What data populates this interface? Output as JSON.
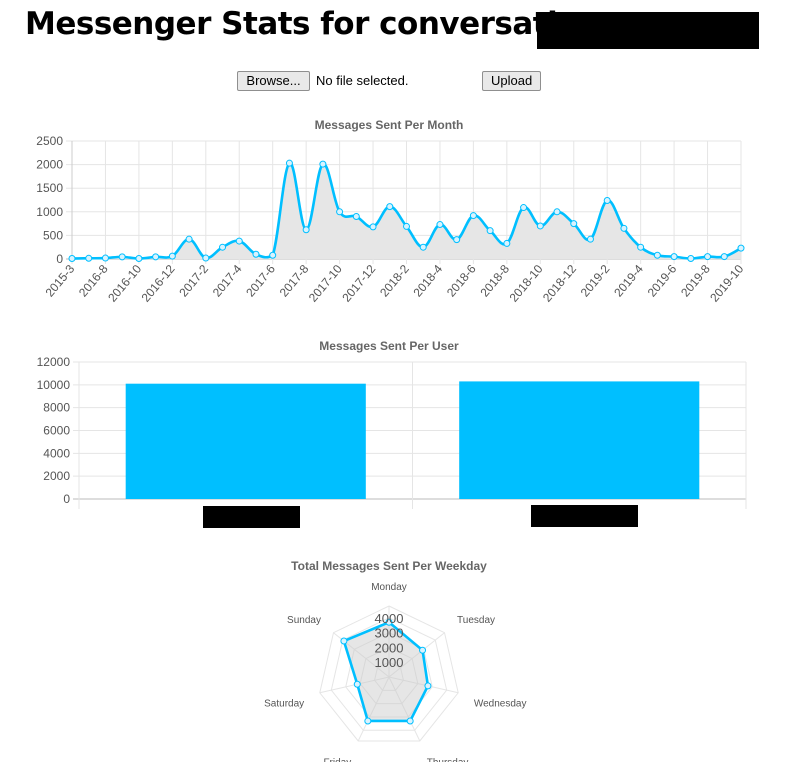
{
  "page": {
    "title": "Messenger Stats for conversation:",
    "browse_label": "Browse...",
    "file_status": "No file selected.",
    "upload_label": "Upload"
  },
  "colors": {
    "series": "#00bfff",
    "fill": "#e6e6e6",
    "grid": "#e5e5e5",
    "axis": "#666666"
  },
  "chart_data": [
    {
      "type": "line",
      "title": "Messages Sent Per Month",
      "xlabel": "",
      "ylabel": "",
      "ylim": [
        0,
        2500
      ],
      "yticks": [
        0,
        500,
        1000,
        1500,
        2000,
        2500
      ],
      "x_tick_labels": [
        "2015-3",
        "2016-8",
        "2016-10",
        "2016-12",
        "2017-2",
        "2017-4",
        "2017-6",
        "2017-8",
        "2017-10",
        "2017-12",
        "2018-2",
        "2018-4",
        "2018-6",
        "2018-8",
        "2018-10",
        "2018-12",
        "2019-2",
        "2019-4",
        "2019-6",
        "2019-8",
        "2019-10"
      ],
      "values": [
        10,
        15,
        20,
        45,
        10,
        45,
        60,
        420,
        20,
        250,
        380,
        100,
        80,
        2030,
        620,
        2010,
        1000,
        900,
        680,
        1110,
        690,
        250,
        730,
        410,
        920,
        600,
        330,
        1090,
        700,
        1000,
        750,
        420,
        1240,
        650,
        250,
        80,
        50,
        10,
        50,
        50,
        230
      ],
      "grid": true,
      "legend": "none"
    },
    {
      "type": "bar",
      "title": "Messages Sent Per User",
      "categories": [
        "",
        ""
      ],
      "values": [
        10100,
        10300
      ],
      "ylim": [
        0,
        12000
      ],
      "yticks": [
        0,
        2000,
        4000,
        6000,
        8000,
        10000,
        12000
      ],
      "grid": true,
      "legend": "none"
    },
    {
      "type": "radar",
      "title": "Total Messages Sent Per Weekday",
      "categories": [
        "Monday",
        "Tuesday",
        "Wednesday",
        "Thursday",
        "Friday",
        "Saturday",
        "Sunday"
      ],
      "values": [
        3700,
        2900,
        2700,
        3300,
        3300,
        2200,
        3900
      ],
      "rlim": [
        0,
        4800
      ],
      "rticks": [
        1000,
        2000,
        3000,
        4000
      ],
      "legend": "none"
    }
  ]
}
